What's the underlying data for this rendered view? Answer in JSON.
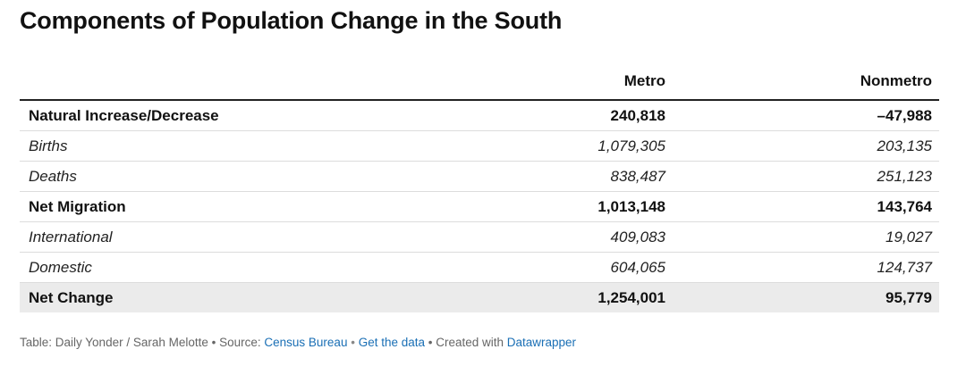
{
  "title": "Components of Population Change in the South",
  "chart_data": {
    "type": "table",
    "title": "Components of Population Change in the South",
    "columns": [
      "",
      "Metro",
      "Nonmetro"
    ],
    "rows": [
      {
        "label": "Natural Increase/Decrease",
        "metro": "240,818",
        "nonmetro": "–47,988",
        "style": "bold"
      },
      {
        "label": "Births",
        "metro": "1,079,305",
        "nonmetro": "203,135",
        "style": "sub"
      },
      {
        "label": "Deaths",
        "metro": "838,487",
        "nonmetro": "251,123",
        "style": "sub"
      },
      {
        "label": "Net Migration",
        "metro": "1,013,148",
        "nonmetro": "143,764",
        "style": "bold"
      },
      {
        "label": "International",
        "metro": "409,083",
        "nonmetro": "19,027",
        "style": "sub"
      },
      {
        "label": "Domestic",
        "metro": "604,065",
        "nonmetro": "124,737",
        "style": "sub"
      },
      {
        "label": "Net Change",
        "metro": "1,254,001",
        "nonmetro": "95,779",
        "style": "total"
      }
    ],
    "values": {
      "Metro": [
        240818,
        1079305,
        838487,
        1013148,
        409083,
        604065,
        1254001
      ],
      "Nonmetro": [
        -47988,
        203135,
        251123,
        143764,
        19027,
        124737,
        95779
      ]
    }
  },
  "footer": {
    "prefix": "Table: Daily Yonder / Sarah Melotte • Source: ",
    "source_link": "Census Bureau",
    "sep1": " • ",
    "data_link": "Get the data",
    "sep2": " • Created with ",
    "tool_link": "Datawrapper"
  },
  "colors": {
    "text": "#111111",
    "link": "#1a6fb5",
    "total_row_bg": "#ebebeb",
    "muted": "#666666"
  }
}
